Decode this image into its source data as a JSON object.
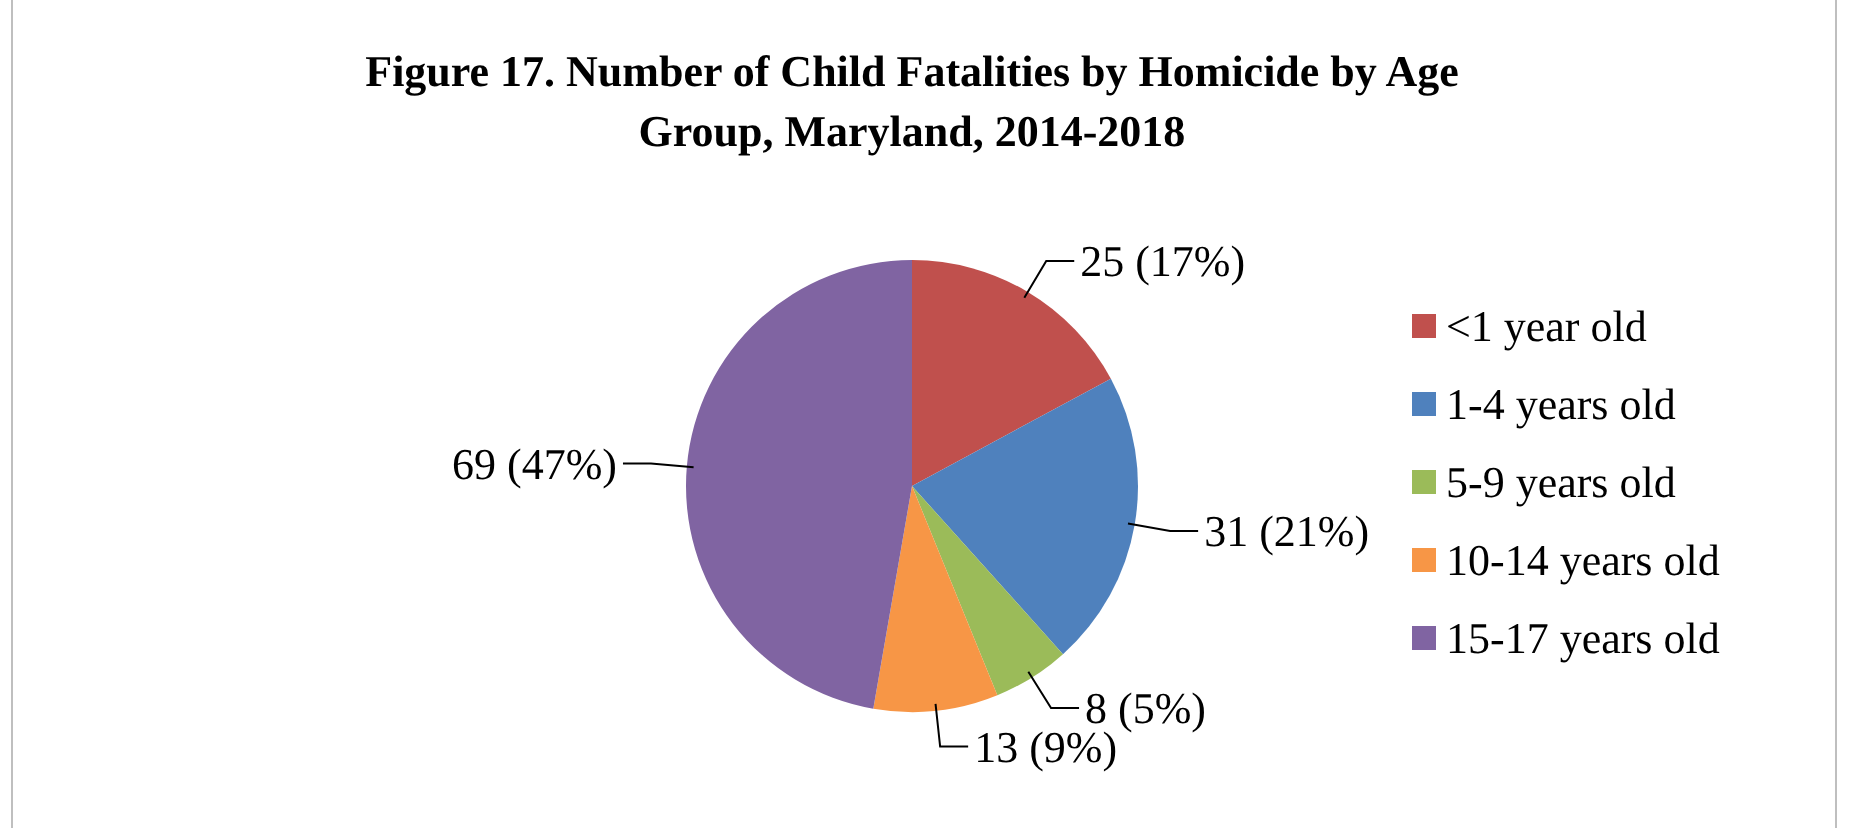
{
  "chart_data": {
    "type": "pie",
    "title": "Figure 17. Number of Child Fatalities by Homicide by Age Group, Maryland, 2014-2018",
    "categories": [
      "<1 year old",
      "1-4 years old",
      "5-9 years old",
      "10-14 years old",
      "15-17 years old"
    ],
    "values": [
      25,
      31,
      8,
      13,
      69
    ],
    "colors": [
      "#c0504d",
      "#4f81bd",
      "#9bbb59",
      "#f79646",
      "#8064a2"
    ],
    "value_labels": [
      "25 (17%)",
      "31 (21%)",
      "8 (5%)",
      "13 (9%)",
      "69 (47%)"
    ],
    "legend": "right"
  }
}
